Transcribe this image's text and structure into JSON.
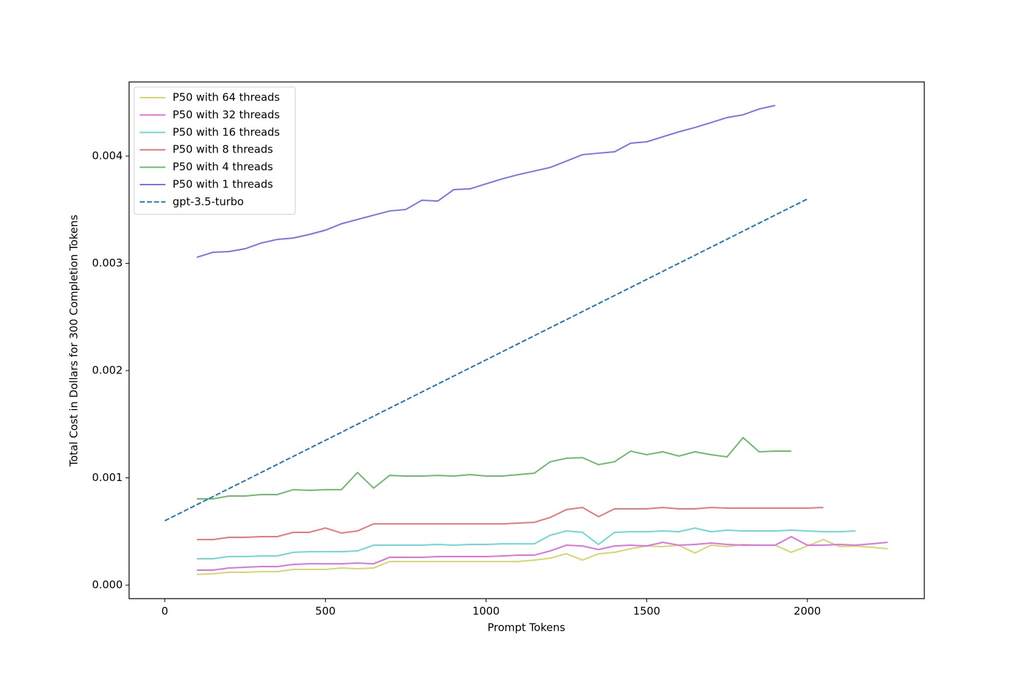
{
  "chart_data": {
    "type": "line",
    "xlabel": "Prompt Tokens",
    "ylabel": "Total Cost in Dollars for 300 Completion Tokens",
    "xlim": [
      -111,
      2364
    ],
    "ylim": [
      -0.000126,
      0.004691
    ],
    "xticks": [
      0,
      500,
      1000,
      1500,
      2000
    ],
    "yticks": [
      {
        "value": 0,
        "label": "0.000"
      },
      {
        "value": 0.001,
        "label": "0.001"
      },
      {
        "value": 0.002,
        "label": "0.002"
      },
      {
        "value": 0.003,
        "label": "0.003"
      },
      {
        "value": 0.004,
        "label": "0.004"
      }
    ],
    "legend": "upper left",
    "series": [
      {
        "name": "P50 with 64 threads",
        "color": "#d6d66c",
        "x": [
          100,
          150,
          200,
          250,
          300,
          350,
          400,
          450,
          500,
          550,
          600,
          650,
          700,
          750,
          800,
          850,
          900,
          950,
          1000,
          1050,
          1100,
          1150,
          1200,
          1250,
          1300,
          1350,
          1400,
          1450,
          1500,
          1550,
          1600,
          1650,
          1700,
          1750,
          1800,
          1850,
          1900,
          1950,
          2000,
          2050,
          2100,
          2150,
          2200,
          2250
        ],
        "values": [
          0.0001,
          0.000106,
          0.00012,
          0.00012,
          0.000126,
          0.000126,
          0.000146,
          0.000146,
          0.000146,
          0.00016,
          0.000153,
          0.00016,
          0.00022,
          0.00022,
          0.00022,
          0.00022,
          0.00022,
          0.00022,
          0.00022,
          0.00022,
          0.00022,
          0.000233,
          0.000252,
          0.000292,
          0.000233,
          0.000292,
          0.000306,
          0.000339,
          0.000365,
          0.000359,
          0.000372,
          0.000299,
          0.000372,
          0.000359,
          0.000379,
          0.000372,
          0.000372,
          0.000306,
          0.000365,
          0.000425,
          0.000359,
          0.000365,
          0.000352,
          0.000339
        ]
      },
      {
        "name": "P50 with 32 threads",
        "color": "#e070e0",
        "x": [
          100,
          150,
          200,
          250,
          300,
          350,
          400,
          450,
          500,
          550,
          600,
          650,
          700,
          750,
          800,
          850,
          900,
          950,
          1000,
          1050,
          1100,
          1150,
          1200,
          1250,
          1300,
          1350,
          1400,
          1450,
          1500,
          1550,
          1600,
          1650,
          1700,
          1750,
          1800,
          1850,
          1900,
          1950,
          2000,
          2050,
          2100,
          2150,
          2200,
          2250
        ],
        "values": [
          0.00014,
          0.00014,
          0.00016,
          0.000166,
          0.000173,
          0.000173,
          0.000193,
          0.000199,
          0.000199,
          0.000199,
          0.000206,
          0.000199,
          0.000259,
          0.000259,
          0.000259,
          0.000266,
          0.000266,
          0.000266,
          0.000266,
          0.000272,
          0.000279,
          0.000279,
          0.000319,
          0.000372,
          0.000365,
          0.000332,
          0.000365,
          0.000372,
          0.000365,
          0.000399,
          0.000372,
          0.000379,
          0.000392,
          0.000379,
          0.000372,
          0.000372,
          0.000372,
          0.000452,
          0.000372,
          0.000372,
          0.000379,
          0.000372,
          0.000385,
          0.000399
        ]
      },
      {
        "name": "P50 with 16 threads",
        "color": "#6cd8d8",
        "x": [
          100,
          150,
          200,
          250,
          300,
          350,
          400,
          450,
          500,
          550,
          600,
          650,
          700,
          750,
          800,
          850,
          900,
          950,
          1000,
          1050,
          1100,
          1150,
          1200,
          1250,
          1300,
          1350,
          1400,
          1450,
          1500,
          1550,
          1600,
          1650,
          1700,
          1750,
          1800,
          1850,
          1900,
          1950,
          2000,
          2050,
          2100,
          2150
        ],
        "values": [
          0.000246,
          0.000246,
          0.000266,
          0.000266,
          0.000272,
          0.000272,
          0.000306,
          0.000312,
          0.000312,
          0.000312,
          0.000319,
          0.000372,
          0.000372,
          0.000372,
          0.000372,
          0.000379,
          0.000372,
          0.000379,
          0.000379,
          0.000385,
          0.000385,
          0.000385,
          0.000465,
          0.000505,
          0.000492,
          0.000379,
          0.000492,
          0.000498,
          0.000498,
          0.000505,
          0.000498,
          0.000532,
          0.000498,
          0.000512,
          0.000505,
          0.000505,
          0.000505,
          0.000512,
          0.000505,
          0.000498,
          0.000498,
          0.000505
        ]
      },
      {
        "name": "P50 with 8 threads",
        "color": "#f07474",
        "x": [
          100,
          150,
          200,
          250,
          300,
          350,
          400,
          450,
          500,
          550,
          600,
          650,
          700,
          750,
          800,
          850,
          900,
          950,
          1000,
          1050,
          1100,
          1150,
          1200,
          1250,
          1300,
          1350,
          1400,
          1450,
          1500,
          1550,
          1600,
          1650,
          1700,
          1750,
          1800,
          1850,
          1900,
          1950,
          2000,
          2050
        ],
        "values": [
          0.000425,
          0.000425,
          0.000445,
          0.000445,
          0.000452,
          0.000452,
          0.000492,
          0.000492,
          0.000532,
          0.000485,
          0.000505,
          0.000571,
          0.000571,
          0.000571,
          0.000571,
          0.000571,
          0.000571,
          0.000571,
          0.000571,
          0.000571,
          0.000578,
          0.000585,
          0.000631,
          0.000704,
          0.000724,
          0.000638,
          0.000711,
          0.000711,
          0.000711,
          0.000724,
          0.000711,
          0.000711,
          0.000724,
          0.000718,
          0.000718,
          0.000718,
          0.000718,
          0.000718,
          0.000718,
          0.000724
        ]
      },
      {
        "name": "P50 with 4 threads",
        "color": "#6cbb6c",
        "x": [
          100,
          150,
          200,
          250,
          300,
          350,
          400,
          450,
          500,
          550,
          600,
          650,
          700,
          750,
          800,
          850,
          900,
          950,
          1000,
          1050,
          1100,
          1150,
          1200,
          1250,
          1300,
          1350,
          1400,
          1450,
          1500,
          1550,
          1600,
          1650,
          1700,
          1750,
          1800,
          1850,
          1900,
          1950
        ],
        "values": [
          0.000804,
          0.000804,
          0.000831,
          0.000831,
          0.000844,
          0.000844,
          0.00089,
          0.000884,
          0.00089,
          0.00089,
          0.00105,
          0.000904,
          0.001023,
          0.001017,
          0.001017,
          0.001023,
          0.001017,
          0.00103,
          0.001017,
          0.001017,
          0.00103,
          0.001043,
          0.00115,
          0.001183,
          0.001189,
          0.001123,
          0.00115,
          0.001249,
          0.001216,
          0.001243,
          0.001203,
          0.001243,
          0.001216,
          0.001196,
          0.001375,
          0.001243,
          0.001249,
          0.001249
        ]
      },
      {
        "name": "P50 with 1 threads",
        "color": "#7474f2",
        "x": [
          100,
          150,
          200,
          250,
          300,
          350,
          400,
          450,
          500,
          550,
          600,
          650,
          700,
          750,
          800,
          850,
          900,
          950,
          1000,
          1050,
          1100,
          1150,
          1200,
          1250,
          1300,
          1350,
          1400,
          1450,
          1500,
          1550,
          1600,
          1650,
          1700,
          1750,
          1800,
          1850,
          1900
        ],
        "values": [
          0.003056,
          0.003103,
          0.00311,
          0.003136,
          0.003189,
          0.003223,
          0.003236,
          0.003269,
          0.003309,
          0.003369,
          0.003409,
          0.003449,
          0.003488,
          0.003502,
          0.003588,
          0.003581,
          0.003688,
          0.003694,
          0.003741,
          0.003787,
          0.003827,
          0.00386,
          0.003894,
          0.003953,
          0.004013,
          0.004027,
          0.00404,
          0.00412,
          0.004133,
          0.00418,
          0.004226,
          0.004266,
          0.004312,
          0.004359,
          0.004385,
          0.004439,
          0.004472
        ]
      },
      {
        "name": "gpt-3.5-turbo",
        "color": "#1f77b4",
        "dashed": true,
        "x": [
          0,
          2000
        ],
        "values": [
          0.0006,
          0.0036
        ]
      }
    ]
  }
}
